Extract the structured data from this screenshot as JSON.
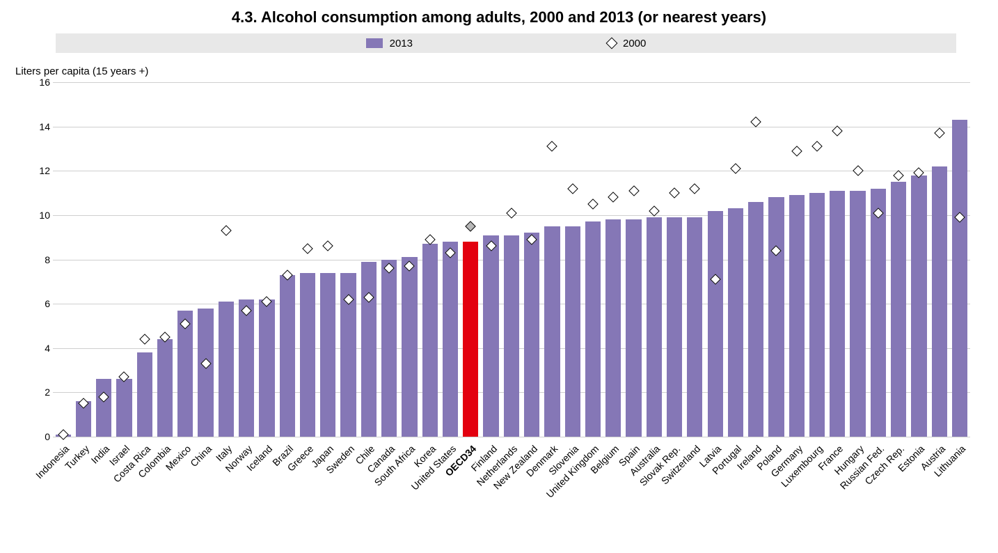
{
  "title": "4.3.  Alcohol consumption among adults, 2000 and 2013 (or nearest years)",
  "yaxis_title": "Liters per capita (15 years +)",
  "legend": {
    "bar_label": "2013",
    "marker_label": "2000",
    "background": "#e8e8e8"
  },
  "chart": {
    "type": "bar+scatter",
    "ymin": 0,
    "ymax": 16,
    "ytick_step": 2,
    "grid_color": "#cfcfcf",
    "background": "#ffffff",
    "bar_color": "#8577b6",
    "highlight_bar_color": "#e3000f",
    "marker_fill": "#ffffff",
    "marker_stroke": "#000000",
    "label_fontsize": 14,
    "title_fontsize": 22,
    "bar_width_ratio": 0.76
  },
  "data": [
    {
      "label": "Indonesia",
      "v2013": 0.1,
      "v2000": 0.1
    },
    {
      "label": "Turkey",
      "v2013": 1.6,
      "v2000": 1.5
    },
    {
      "label": "India",
      "v2013": 2.6,
      "v2000": 1.8
    },
    {
      "label": "Israel",
      "v2013": 2.6,
      "v2000": 2.7
    },
    {
      "label": "Costa Rica",
      "v2013": 3.8,
      "v2000": 4.4
    },
    {
      "label": "Colombia",
      "v2013": 4.4,
      "v2000": 4.5
    },
    {
      "label": "Mexico",
      "v2013": 5.7,
      "v2000": 5.1
    },
    {
      "label": "China",
      "v2013": 5.8,
      "v2000": 3.3
    },
    {
      "label": "Italy",
      "v2013": 6.1,
      "v2000": 9.3
    },
    {
      "label": "Norway",
      "v2013": 6.2,
      "v2000": 5.7
    },
    {
      "label": "Iceland",
      "v2013": 6.2,
      "v2000": 6.1
    },
    {
      "label": "Brazil",
      "v2013": 7.3,
      "v2000": 7.3
    },
    {
      "label": "Greece",
      "v2013": 7.4,
      "v2000": 8.5
    },
    {
      "label": "Japan",
      "v2013": 7.4,
      "v2000": 8.6
    },
    {
      "label": "Sweden",
      "v2013": 7.4,
      "v2000": 6.2
    },
    {
      "label": "Chile",
      "v2013": 7.9,
      "v2000": 6.3
    },
    {
      "label": "Canada",
      "v2013": 8.0,
      "v2000": 7.6
    },
    {
      "label": "South Africa",
      "v2013": 8.1,
      "v2000": 7.7
    },
    {
      "label": "Korea",
      "v2013": 8.7,
      "v2000": 8.9
    },
    {
      "label": "United States",
      "v2013": 8.8,
      "v2000": 8.3
    },
    {
      "label": "OECD34",
      "v2013": 8.8,
      "v2000": 9.5,
      "highlight": true
    },
    {
      "label": "Finland",
      "v2013": 9.1,
      "v2000": 8.6
    },
    {
      "label": "Netherlands",
      "v2013": 9.1,
      "v2000": 10.1
    },
    {
      "label": "New Zealand",
      "v2013": 9.2,
      "v2000": 8.9
    },
    {
      "label": "Denmark",
      "v2013": 9.5,
      "v2000": 13.1
    },
    {
      "label": "Slovenia",
      "v2013": 9.5,
      "v2000": 11.2
    },
    {
      "label": "United Kingdom",
      "v2013": 9.7,
      "v2000": 10.5
    },
    {
      "label": "Belgium",
      "v2013": 9.8,
      "v2000": 10.8
    },
    {
      "label": "Spain",
      "v2013": 9.8,
      "v2000": 11.1
    },
    {
      "label": "Australia",
      "v2013": 9.9,
      "v2000": 10.2
    },
    {
      "label": "Slovak Rep.",
      "v2013": 9.9,
      "v2000": 11.0
    },
    {
      "label": "Switzerland",
      "v2013": 9.9,
      "v2000": 11.2
    },
    {
      "label": "Latvia",
      "v2013": 10.2,
      "v2000": 7.1
    },
    {
      "label": "Portugal",
      "v2013": 10.3,
      "v2000": 12.1
    },
    {
      "label": "Ireland",
      "v2013": 10.6,
      "v2000": 14.2
    },
    {
      "label": "Poland",
      "v2013": 10.8,
      "v2000": 8.4
    },
    {
      "label": "Germany",
      "v2013": 10.9,
      "v2000": 12.9
    },
    {
      "label": "Luxembourg",
      "v2013": 11.0,
      "v2000": 13.1
    },
    {
      "label": "France",
      "v2013": 11.1,
      "v2000": 13.8
    },
    {
      "label": "Hungary",
      "v2013": 11.1,
      "v2000": 12.0
    },
    {
      "label": "Russian Fed.",
      "v2013": 11.2,
      "v2000": 10.1
    },
    {
      "label": "Czech Rep.",
      "v2013": 11.5,
      "v2000": 11.8
    },
    {
      "label": "Estonia",
      "v2013": 11.8,
      "v2000": 11.9
    },
    {
      "label": "Austria",
      "v2013": 12.2,
      "v2000": 13.7
    },
    {
      "label": "Lithuania",
      "v2013": 14.3,
      "v2000": 9.9
    }
  ]
}
